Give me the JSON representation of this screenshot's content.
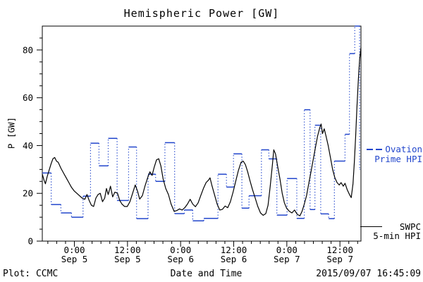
{
  "title": "Hemispheric Power [GW]",
  "y_axis": {
    "label": "P [GW]",
    "max": 90,
    "major_ticks": [
      0,
      20,
      40,
      60,
      80
    ],
    "minor_step": 5
  },
  "x_axis": {
    "label": "Date and Time",
    "span_hours": 72,
    "minor_step_hours": 2,
    "major_ticks": [
      {
        "hour": 7.25,
        "time": "0:00",
        "date": "Sep 5"
      },
      {
        "hour": 19.25,
        "time": "12:00",
        "date": "Sep 5"
      },
      {
        "hour": 31.25,
        "time": "0:00",
        "date": "Sep 6"
      },
      {
        "hour": 43.25,
        "time": "12:00",
        "date": "Sep 6"
      },
      {
        "hour": 55.25,
        "time": "0:00",
        "date": "Sep 7"
      },
      {
        "hour": 67.25,
        "time": "12:00",
        "date": "Sep 7"
      }
    ]
  },
  "legend": {
    "ovation": {
      "line1": "Ovation",
      "line2": "Prime HPI",
      "color": "#2246cc"
    },
    "swpc": {
      "line1": "SWPC",
      "line2": "5-min HPI",
      "color": "#000000"
    }
  },
  "footer": {
    "left": "Plot: CCMC",
    "right": "2015/09/07 16:45:09"
  },
  "chart_data": {
    "type": "line",
    "title": "Hemispheric Power [GW]",
    "xlabel": "Date and Time",
    "ylabel": "P [GW]",
    "ylim": [
      0,
      90
    ],
    "x_hours_span": 72,
    "x_note": "hours across axis; labeled ticks at 0:00/12:00 of Sep 5-7",
    "grid": false,
    "legend_position": "right-outside",
    "series": [
      {
        "name": "SWPC 5-min HPI",
        "color": "#000000",
        "style": "solid",
        "points": [
          [
            0,
            28
          ],
          [
            0.4,
            25.5
          ],
          [
            0.7,
            24
          ],
          [
            1.1,
            27
          ],
          [
            1.6,
            30
          ],
          [
            2,
            32.5
          ],
          [
            2.4,
            34.5
          ],
          [
            2.8,
            35
          ],
          [
            3.2,
            33.5
          ],
          [
            3.6,
            33
          ],
          [
            4.2,
            30.5
          ],
          [
            4.8,
            28.5
          ],
          [
            5.4,
            26.5
          ],
          [
            6,
            24.5
          ],
          [
            6.6,
            22.5
          ],
          [
            7.2,
            21
          ],
          [
            7.8,
            20
          ],
          [
            8.4,
            19
          ],
          [
            9,
            18
          ],
          [
            9.6,
            17.5
          ],
          [
            10.1,
            19.5
          ],
          [
            10.6,
            17
          ],
          [
            11.1,
            15
          ],
          [
            11.6,
            14.5
          ],
          [
            12.1,
            18
          ],
          [
            12.6,
            19.5
          ],
          [
            13.1,
            20
          ],
          [
            13.6,
            16.5
          ],
          [
            14.1,
            18
          ],
          [
            14.5,
            22
          ],
          [
            14.9,
            19.5
          ],
          [
            15.4,
            23
          ],
          [
            15.9,
            18.5
          ],
          [
            16.4,
            20.5
          ],
          [
            17,
            20
          ],
          [
            17.5,
            17
          ],
          [
            18,
            15.5
          ],
          [
            18.6,
            14.5
          ],
          [
            19.2,
            14.5
          ],
          [
            19.8,
            16.5
          ],
          [
            20.4,
            20
          ],
          [
            21,
            23.5
          ],
          [
            21.5,
            21
          ],
          [
            22,
            17.6
          ],
          [
            22.6,
            19
          ],
          [
            23.2,
            23
          ],
          [
            23.8,
            26.5
          ],
          [
            24.3,
            29
          ],
          [
            24.8,
            27.5
          ],
          [
            25.3,
            31
          ],
          [
            25.8,
            34
          ],
          [
            26.3,
            34.5
          ],
          [
            26.8,
            31.5
          ],
          [
            27.3,
            26
          ],
          [
            27.9,
            22
          ],
          [
            28.5,
            19.5
          ],
          [
            29.1,
            15.5
          ],
          [
            29.8,
            12.4
          ],
          [
            30.4,
            12.8
          ],
          [
            31,
            13.5
          ],
          [
            31.6,
            13
          ],
          [
            32.2,
            14
          ],
          [
            32.8,
            15.5
          ],
          [
            33.4,
            17.5
          ],
          [
            34,
            15.5
          ],
          [
            34.6,
            14.4
          ],
          [
            35.2,
            16
          ],
          [
            35.8,
            19
          ],
          [
            36.4,
            22
          ],
          [
            37,
            24.5
          ],
          [
            37.6,
            25.6
          ],
          [
            37.9,
            26.5
          ],
          [
            38.3,
            23.5
          ],
          [
            38.9,
            19.5
          ],
          [
            39.5,
            15.5
          ],
          [
            40.1,
            13
          ],
          [
            40.7,
            13.3
          ],
          [
            41.3,
            14.7
          ],
          [
            41.9,
            14
          ],
          [
            42.5,
            16.5
          ],
          [
            43.1,
            20.5
          ],
          [
            43.7,
            25
          ],
          [
            44.3,
            29.5
          ],
          [
            44.9,
            33
          ],
          [
            45.4,
            33.5
          ],
          [
            45.9,
            32
          ],
          [
            46.4,
            29
          ],
          [
            46.9,
            25.5
          ],
          [
            47.5,
            21.5
          ],
          [
            48.1,
            18
          ],
          [
            48.7,
            14.5
          ],
          [
            49.3,
            11.8
          ],
          [
            49.9,
            10.8
          ],
          [
            50.5,
            11.5
          ],
          [
            51,
            15
          ],
          [
            51.5,
            23
          ],
          [
            52,
            32
          ],
          [
            52.3,
            38.2
          ],
          [
            52.7,
            36.5
          ],
          [
            53.2,
            31
          ],
          [
            53.7,
            26
          ],
          [
            54.2,
            20
          ],
          [
            54.7,
            16
          ],
          [
            55.2,
            13.8
          ],
          [
            55.8,
            12.5
          ],
          [
            56.4,
            11.8
          ],
          [
            57,
            13
          ],
          [
            57.6,
            11.2
          ],
          [
            58.2,
            10.6
          ],
          [
            58.7,
            12.5
          ],
          [
            59.2,
            15.5
          ],
          [
            59.7,
            19
          ],
          [
            60.2,
            24
          ],
          [
            60.7,
            29
          ],
          [
            61.2,
            34
          ],
          [
            61.7,
            39
          ],
          [
            62.2,
            44
          ],
          [
            62.7,
            47.5
          ],
          [
            63,
            49
          ],
          [
            63.3,
            45
          ],
          [
            63.7,
            47
          ],
          [
            64.1,
            44
          ],
          [
            64.6,
            40
          ],
          [
            65.1,
            35
          ],
          [
            65.6,
            30
          ],
          [
            66.1,
            26.5
          ],
          [
            66.6,
            24.5
          ],
          [
            67.1,
            23.5
          ],
          [
            67.5,
            24.5
          ],
          [
            68,
            23
          ],
          [
            68.4,
            24.2
          ],
          [
            68.9,
            21.5
          ],
          [
            69.4,
            19.5
          ],
          [
            69.8,
            18.2
          ],
          [
            70.2,
            24
          ],
          [
            70.5,
            33
          ],
          [
            70.8,
            44
          ],
          [
            71.1,
            56
          ],
          [
            71.4,
            67
          ],
          [
            71.7,
            76
          ],
          [
            72,
            81
          ]
        ]
      },
      {
        "name": "Ovation Prime HPI",
        "color": "#2246cc",
        "style": "steps: solid level dashes, dotted vertical connectors",
        "segments": [
          [
            0,
            2,
            28.5
          ],
          [
            2,
            4.2,
            15.3
          ],
          [
            4.2,
            6.6,
            11.8
          ],
          [
            6.6,
            9.2,
            10
          ],
          [
            9.2,
            10.9,
            18.8
          ],
          [
            10.9,
            12.8,
            41
          ],
          [
            12.8,
            14.9,
            31.5
          ],
          [
            14.9,
            16.9,
            43
          ],
          [
            16.9,
            19.5,
            17
          ],
          [
            19.5,
            21.3,
            39.4
          ],
          [
            21.3,
            23.9,
            9.4
          ],
          [
            23.9,
            25.6,
            28
          ],
          [
            25.6,
            27.7,
            25
          ],
          [
            27.7,
            29.9,
            41.2
          ],
          [
            29.9,
            32.1,
            11.5
          ],
          [
            32.1,
            34,
            13
          ],
          [
            34,
            36.5,
            8.5
          ],
          [
            36.5,
            39.7,
            9.5
          ],
          [
            39.7,
            41.6,
            28
          ],
          [
            41.6,
            43.2,
            22.6
          ],
          [
            43.2,
            45.1,
            36.5
          ],
          [
            45.1,
            46.7,
            13.8
          ],
          [
            46.7,
            49.5,
            19
          ],
          [
            49.5,
            51.2,
            38.2
          ],
          [
            51.2,
            53,
            34.4
          ],
          [
            53,
            55.3,
            10.9
          ],
          [
            55.3,
            57.5,
            26.2
          ],
          [
            57.5,
            59.2,
            9.5
          ],
          [
            59.2,
            60.5,
            55
          ],
          [
            60.5,
            61.6,
            13.2
          ],
          [
            61.6,
            62.9,
            48.5
          ],
          [
            62.9,
            64.7,
            11.4
          ],
          [
            64.7,
            66,
            9.4
          ],
          [
            66,
            68.4,
            33.5
          ],
          [
            68.4,
            69.4,
            44.7
          ],
          [
            69.4,
            70.6,
            78.5
          ],
          [
            70.6,
            71.7,
            90
          ],
          [
            71.7,
            71.8,
            30
          ]
        ]
      }
    ]
  }
}
